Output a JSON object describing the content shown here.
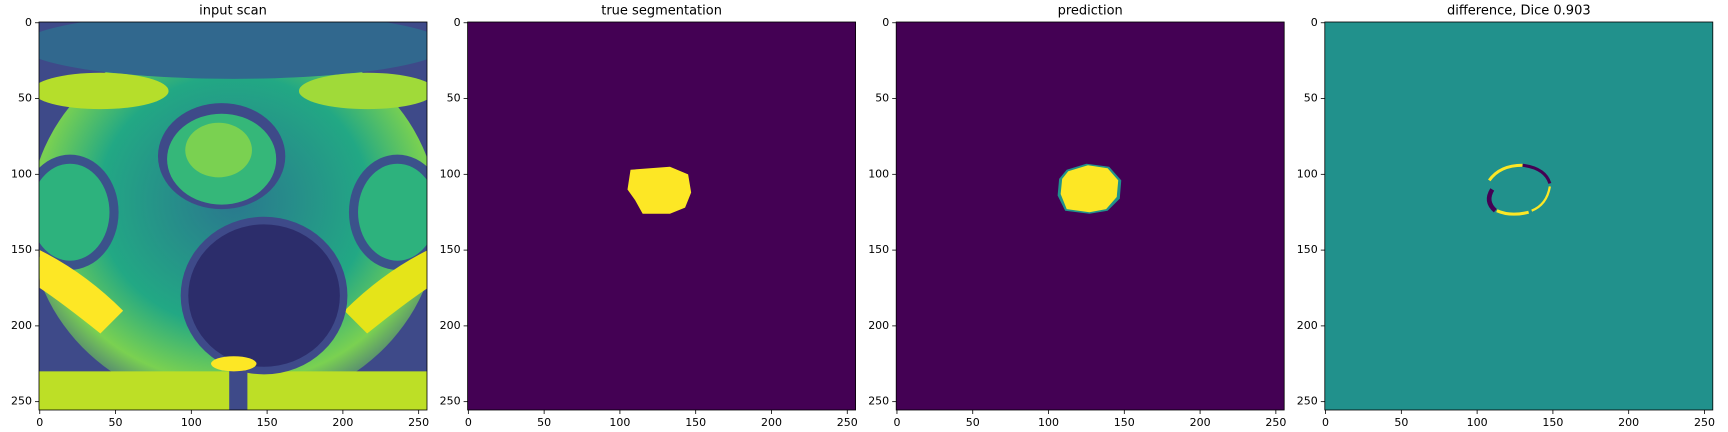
{
  "chart_data": [
    {
      "type": "image",
      "title": "input scan",
      "xlim": [
        -0.5,
        255.5
      ],
      "ylim": [
        255.5,
        -0.5
      ],
      "xticks": [
        0,
        50,
        100,
        150,
        200,
        250
      ],
      "yticks": [
        0,
        50,
        100,
        150,
        200,
        250
      ]
    },
    {
      "type": "image",
      "title": "true segmentation",
      "xlim": [
        -0.5,
        255.5
      ],
      "ylim": [
        255.5,
        -0.5
      ],
      "xticks": [
        0,
        50,
        100,
        150,
        200,
        250
      ],
      "yticks": [
        0,
        50,
        100,
        150,
        200,
        250
      ]
    },
    {
      "type": "image",
      "title": "prediction",
      "xlim": [
        -0.5,
        255.5
      ],
      "ylim": [
        255.5,
        -0.5
      ],
      "xticks": [
        0,
        50,
        100,
        150,
        200,
        250
      ],
      "yticks": [
        0,
        50,
        100,
        150,
        200,
        250
      ]
    },
    {
      "type": "image",
      "title": "difference, Dice 0.903",
      "xlim": [
        -0.5,
        255.5
      ],
      "ylim": [
        255.5,
        -0.5
      ],
      "xticks": [
        0,
        50,
        100,
        150,
        200,
        250
      ],
      "yticks": [
        0,
        50,
        100,
        150,
        200,
        250
      ]
    }
  ]
}
